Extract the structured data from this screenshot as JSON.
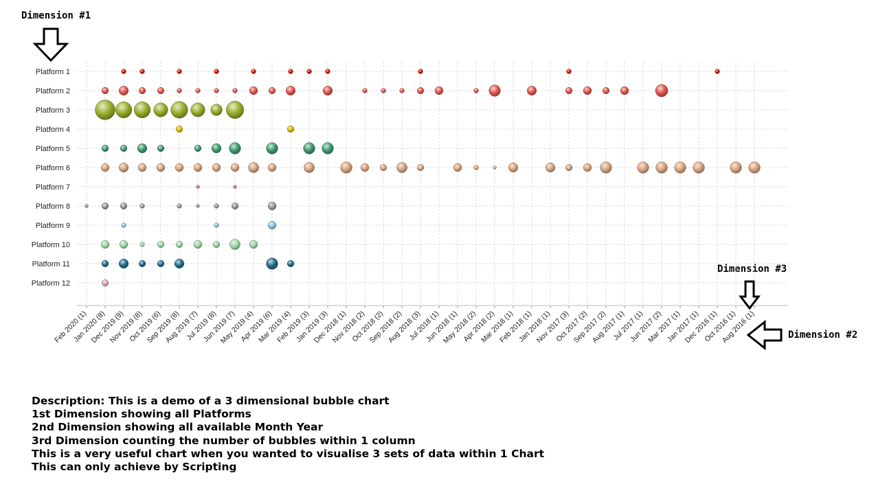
{
  "annotations": {
    "dim1": "Dimension #1",
    "dim2": "Dimension #2",
    "dim3": "Dimension #3"
  },
  "description": [
    "Description: This is a demo of a 3 dimensional bubble chart",
    "1st Dimension showing all Platforms",
    "2nd Dimension showing all available Month Year",
    "3rd Dimension counting the number of bubbles within 1 column",
    "This is a very useful chart when you wanted to visualise 3 sets of data within 1 Chart",
    "This can only achieve by Scripting"
  ],
  "chart_data": {
    "type": "scatter",
    "subtype": "bubble",
    "title": "",
    "xlabel": "",
    "ylabel": "",
    "grid": true,
    "legend": "none",
    "categories": [
      "Feb 2020 (1)",
      "Jan 2020 (8)",
      "Dec 2019 (9)",
      "Nov 2019 (8)",
      "Oct 2019 (6)",
      "Sep 2019 (8)",
      "Aug 2019 (7)",
      "Jul 2019 (8)",
      "Jun 2019 (7)",
      "May 2019 (4)",
      "Apr 2019 (6)",
      "Mar 2019 (4)",
      "Feb 2019 (3)",
      "Jan 2019 (3)",
      "Dec 2018 (1)",
      "Nov 2018 (2)",
      "Oct 2018 (2)",
      "Sep 2018 (2)",
      "Aug 2018 (3)",
      "Jul 2018 (1)",
      "Jun 2018 (1)",
      "May 2018 (2)",
      "Apr 2018 (2)",
      "Mar 2018 (1)",
      "Feb 2018 (1)",
      "Jan 2018 (1)",
      "Nov 2017 (3)",
      "Oct 2017 (2)",
      "Sep 2017 (2)",
      "Aug 2017 (1)",
      "Jul 2017 (1)",
      "Jun 2017 (2)",
      "Mar 2017 (1)",
      "Jan 2017 (1)",
      "Dec 2016 (1)",
      "Oct 2016 (1)",
      "Aug 2016 (1)"
    ],
    "platforms": [
      "Platform 1",
      "Platform 2",
      "Platform 3",
      "Platform 4",
      "Platform 5",
      "Platform 6",
      "Platform 7",
      "Platform 8",
      "Platform 9",
      "Platform 10",
      "Platform 11",
      "Platform 12"
    ],
    "series": [
      {
        "platform": "Platform 1",
        "color": "#e01010",
        "points": [
          [
            2,
            1
          ],
          [
            3,
            1
          ],
          [
            5,
            1
          ],
          [
            7,
            1
          ],
          [
            9,
            1
          ],
          [
            11,
            1
          ],
          [
            12,
            1
          ],
          [
            13,
            1
          ],
          [
            18,
            1
          ],
          [
            26,
            1
          ],
          [
            34,
            1
          ]
        ]
      },
      {
        "platform": "Platform 2",
        "color": "#e0564f",
        "points": [
          [
            1,
            2
          ],
          [
            2,
            4
          ],
          [
            3,
            2
          ],
          [
            4,
            2
          ],
          [
            5,
            1
          ],
          [
            6,
            1
          ],
          [
            7,
            1
          ],
          [
            8,
            1
          ],
          [
            9,
            3
          ],
          [
            10,
            2
          ],
          [
            11,
            4
          ],
          [
            13,
            4
          ],
          [
            15,
            1
          ],
          [
            16,
            1
          ],
          [
            17,
            1
          ],
          [
            18,
            2
          ],
          [
            19,
            3
          ],
          [
            21,
            1
          ],
          [
            22,
            6
          ],
          [
            24,
            4
          ],
          [
            26,
            2
          ],
          [
            27,
            3
          ],
          [
            28,
            2
          ],
          [
            29,
            3
          ],
          [
            31,
            7
          ]
        ]
      },
      {
        "platform": "Platform 3",
        "color": "#9aae2a",
        "points": [
          [
            1,
            18
          ],
          [
            2,
            12
          ],
          [
            3,
            12
          ],
          [
            4,
            9
          ],
          [
            5,
            13
          ],
          [
            6,
            9
          ],
          [
            7,
            6
          ],
          [
            8,
            14
          ]
        ]
      },
      {
        "platform": "Platform 4",
        "color": "#e2b400",
        "points": [
          [
            5,
            2
          ],
          [
            11,
            2
          ]
        ]
      },
      {
        "platform": "Platform 5",
        "color": "#3f9a70",
        "points": [
          [
            1,
            2
          ],
          [
            2,
            2
          ],
          [
            3,
            4
          ],
          [
            4,
            2
          ],
          [
            6,
            2
          ],
          [
            7,
            4
          ],
          [
            8,
            6
          ],
          [
            10,
            6
          ],
          [
            12,
            6
          ],
          [
            13,
            6
          ]
        ]
      },
      {
        "platform": "Platform 6",
        "color": "#d8a480",
        "points": [
          [
            1,
            3
          ],
          [
            2,
            4
          ],
          [
            3,
            3
          ],
          [
            4,
            3
          ],
          [
            5,
            3
          ],
          [
            6,
            3
          ],
          [
            7,
            3
          ],
          [
            8,
            3
          ],
          [
            9,
            5
          ],
          [
            10,
            3
          ],
          [
            12,
            5
          ],
          [
            14,
            6
          ],
          [
            15,
            3
          ],
          [
            16,
            2
          ],
          [
            17,
            5
          ],
          [
            18,
            2
          ],
          [
            20,
            3
          ],
          [
            21,
            1
          ],
          [
            22,
            0.5
          ],
          [
            23,
            4
          ],
          [
            25,
            4
          ],
          [
            26,
            2
          ],
          [
            27,
            3
          ],
          [
            28,
            6
          ],
          [
            30,
            6
          ],
          [
            31,
            6
          ],
          [
            32,
            6
          ],
          [
            33,
            6
          ],
          [
            35,
            6
          ],
          [
            36,
            6
          ]
        ]
      },
      {
        "platform": "Platform 7",
        "color": "#cc66bb",
        "points": [
          [
            6,
            0.5
          ],
          [
            8,
            0.5
          ]
        ]
      },
      {
        "platform": "Platform 8",
        "color": "#999999",
        "points": [
          [
            0,
            0.5
          ],
          [
            1,
            2
          ],
          [
            2,
            2
          ],
          [
            3,
            1
          ],
          [
            5,
            1
          ],
          [
            6,
            0.5
          ],
          [
            7,
            1
          ],
          [
            8,
            2
          ],
          [
            10,
            3
          ]
        ]
      },
      {
        "platform": "Platform 9",
        "color": "#8cc6e0",
        "points": [
          [
            2,
            1
          ],
          [
            7,
            1
          ],
          [
            10,
            3
          ]
        ]
      },
      {
        "platform": "Platform 10",
        "color": "#9fd6a8",
        "points": [
          [
            1,
            3
          ],
          [
            2,
            3
          ],
          [
            3,
            1
          ],
          [
            4,
            2
          ],
          [
            5,
            2
          ],
          [
            6,
            3
          ],
          [
            7,
            2
          ],
          [
            8,
            5
          ],
          [
            9,
            3
          ]
        ]
      },
      {
        "platform": "Platform 11",
        "color": "#1f6b8c",
        "points": [
          [
            1,
            2
          ],
          [
            2,
            4
          ],
          [
            3,
            2
          ],
          [
            4,
            2
          ],
          [
            5,
            4
          ],
          [
            10,
            6
          ],
          [
            11,
            2
          ]
        ]
      },
      {
        "platform": "Platform 12",
        "color": "#e8a2b6",
        "points": [
          [
            1,
            2
          ]
        ]
      }
    ]
  }
}
